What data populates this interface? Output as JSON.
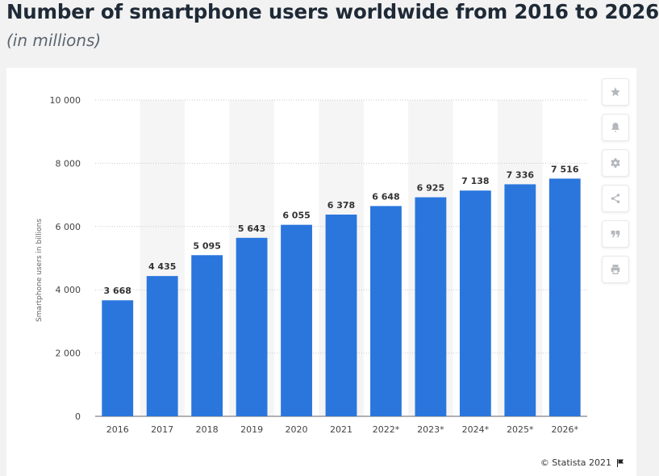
{
  "header": {
    "title": "Number of smartphone users worldwide from 2016 to 2026",
    "subtitle": "(in millions)"
  },
  "toolbar": {
    "buttons": [
      {
        "icon": "star-icon"
      },
      {
        "icon": "bell-icon"
      },
      {
        "icon": "gear-icon"
      },
      {
        "icon": "share-icon"
      },
      {
        "icon": "quote-icon"
      },
      {
        "icon": "print-icon"
      }
    ]
  },
  "footer": {
    "credit": "© Statista 2021",
    "flag_icon": "flag-icon"
  },
  "colors": {
    "bar": "#2a76dd",
    "band": "#f5f5f5",
    "grid": "#c9c9c9",
    "icon": "#b4b8bd"
  },
  "chart_data": {
    "type": "bar",
    "categories": [
      "2016",
      "2017",
      "2018",
      "2019",
      "2020",
      "2021",
      "2022*",
      "2023*",
      "2024*",
      "2025*",
      "2026*"
    ],
    "values": [
      3668,
      4435,
      5095,
      5643,
      6055,
      6378,
      6648,
      6925,
      7138,
      7336,
      7516
    ],
    "value_labels": [
      "3 668",
      "4 435",
      "5 095",
      "5 643",
      "6 055",
      "6 378",
      "6 648",
      "6 925",
      "7 138",
      "7 336",
      "7 516"
    ],
    "title": "Number of smartphone users worldwide from 2016 to 2026",
    "subtitle": "(in millions)",
    "xlabel": "",
    "ylabel": "Smartphone users in billions",
    "ylim": [
      0,
      10000
    ],
    "yticks": [
      0,
      2000,
      4000,
      6000,
      8000,
      10000
    ],
    "ytick_labels": [
      "0",
      "2 000",
      "4 000",
      "6 000",
      "8 000",
      "10 000"
    ],
    "grid": true,
    "legend": "none"
  }
}
